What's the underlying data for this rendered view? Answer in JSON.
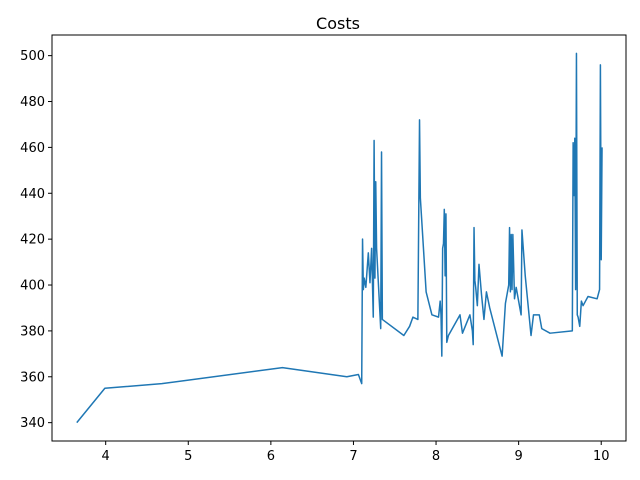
{
  "chart_data": {
    "type": "line",
    "title": "Costs",
    "xlabel": "",
    "ylabel": "",
    "xlim": [
      3.35,
      10.3
    ],
    "ylim": [
      332.0,
      509.0
    ],
    "xticks": [
      4,
      5,
      6,
      7,
      8,
      9,
      10
    ],
    "yticks": [
      340,
      360,
      380,
      400,
      420,
      440,
      460,
      480,
      500
    ],
    "grid": false,
    "legend": "none",
    "series_color": "#1f77b4",
    "series": [
      {
        "x": [
          3.65,
          3.99,
          4.68,
          6.14,
          6.92,
          7.06,
          7.1,
          7.11,
          7.12,
          7.13,
          7.15,
          7.18,
          7.2,
          7.22,
          7.24,
          7.25,
          7.26,
          7.27,
          7.28,
          7.3,
          7.33,
          7.34,
          7.35,
          7.61,
          7.68,
          7.72,
          7.78,
          7.8,
          7.81,
          7.88,
          7.95,
          8.03,
          8.05,
          8.06,
          8.07,
          8.08,
          8.09,
          8.1,
          8.11,
          8.12,
          8.13,
          8.15,
          8.29,
          8.32,
          8.41,
          8.44,
          8.45,
          8.46,
          8.47,
          8.48,
          8.5,
          8.52,
          8.55,
          8.58,
          8.61,
          8.65,
          8.8,
          8.84,
          8.88,
          8.89,
          8.9,
          8.91,
          8.92,
          8.93,
          8.95,
          8.97,
          9.03,
          9.04,
          9.08,
          9.15,
          9.18,
          9.25,
          9.28,
          9.38,
          9.65,
          9.66,
          9.67,
          9.68,
          9.69,
          9.7,
          9.71,
          9.72,
          9.73,
          9.74,
          9.76,
          9.78,
          9.81,
          9.84,
          9.95,
          9.98,
          9.99,
          10.0,
          10.01
        ],
        "y": [
          340,
          355,
          357,
          364,
          360,
          361,
          357,
          420,
          398,
          403,
          399,
          414,
          401,
          416,
          386,
          463,
          403,
          445,
          416,
          402,
          381,
          458,
          385,
          378,
          382,
          386,
          385,
          472,
          438,
          397,
          387,
          386,
          393,
          387,
          369,
          416,
          418,
          433,
          404,
          431,
          375,
          378,
          387,
          379,
          387,
          380,
          374,
          425,
          402,
          399,
          391,
          409,
          396,
          385,
          397,
          390,
          369,
          392,
          400,
          425,
          397,
          422,
          398,
          422,
          394,
          399,
          387,
          424,
          404,
          378,
          387,
          387,
          381,
          379,
          380,
          462,
          439,
          464,
          398,
          501,
          387,
          386,
          384,
          382,
          393,
          391,
          393,
          395,
          394,
          398,
          496,
          411,
          460
        ]
      }
    ]
  }
}
